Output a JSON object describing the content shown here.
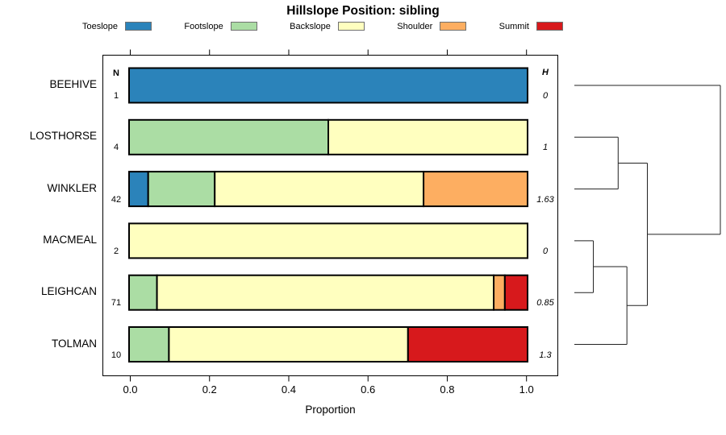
{
  "title": "Hillslope Position: sibling",
  "columns": {
    "n_header": "N",
    "h_header": "H"
  },
  "chart_data": {
    "type": "bar",
    "subtype": "horizontal-stacked-proportions-with-dendrogram",
    "title": "Hillslope Position: sibling",
    "xlabel": "Proportion",
    "xlim": [
      0,
      1
    ],
    "xticks": [
      0,
      0.2,
      0.4,
      0.6,
      0.8,
      1.0
    ],
    "grid": false,
    "legend_position": "top",
    "categories": [
      "Toeslope",
      "Footslope",
      "Backslope",
      "Shoulder",
      "Summit"
    ],
    "colors": [
      "#2B83BA",
      "#ABDDA4",
      "#FFFFBF",
      "#FDAE61",
      "#D7191C"
    ],
    "rows": [
      {
        "name": "BEEHIVE",
        "N": 1,
        "H": "0",
        "proportions": [
          1,
          0,
          0,
          0,
          0
        ]
      },
      {
        "name": "LOSTHORSE",
        "N": 4,
        "H": "1",
        "proportions": [
          0,
          0.5,
          0.5,
          0,
          0
        ]
      },
      {
        "name": "WINKLER",
        "N": 42,
        "H": "1.63",
        "proportions": [
          0.048,
          0.167,
          0.524,
          0.261,
          0
        ]
      },
      {
        "name": "MACMEAL",
        "N": 2,
        "H": "0",
        "proportions": [
          0,
          0,
          1,
          0,
          0
        ]
      },
      {
        "name": "LEIGHCAN",
        "N": 71,
        "H": "0.85",
        "proportions": [
          0,
          0.07,
          0.845,
          0.028,
          0.057
        ]
      },
      {
        "name": "TOLMAN",
        "N": 10,
        "H": "1.3",
        "proportions": [
          0,
          0.1,
          0.6,
          0,
          0.3
        ]
      }
    ],
    "dendrogram": {
      "leaf_order": [
        "BEEHIVE",
        "LOSTHORSE",
        "WINKLER",
        "MACMEAL",
        "LEIGHCAN",
        "TOLMAN"
      ],
      "merges": [
        {
          "id": "m1",
          "children": [
            "LOSTHORSE",
            "WINKLER"
          ],
          "height": 0.3
        },
        {
          "id": "m2",
          "children": [
            "MACMEAL",
            "LEIGHCAN"
          ],
          "height": 0.13
        },
        {
          "id": "m3",
          "children": [
            "m2",
            "TOLMAN"
          ],
          "height": 0.36
        },
        {
          "id": "m4",
          "children": [
            "m1",
            "m3"
          ],
          "height": 0.5
        },
        {
          "id": "m5",
          "children": [
            "BEEHIVE",
            "m4"
          ],
          "height": 1.0
        }
      ]
    }
  }
}
